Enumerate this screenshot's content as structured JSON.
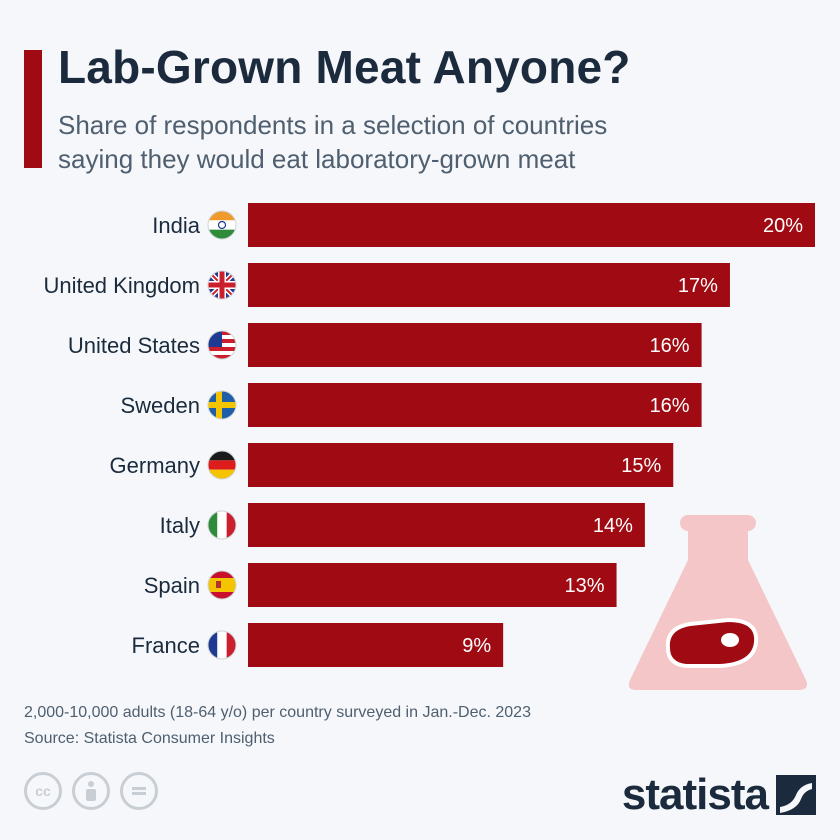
{
  "header": {
    "title": "Lab-Grown Meat Anyone?",
    "subtitle_line1": "Share of respondents in a selection of countries",
    "subtitle_line2": "saying they would eat laboratory-grown meat"
  },
  "chart_data": {
    "type": "bar",
    "orientation": "horizontal",
    "categories": [
      "India",
      "United Kingdom",
      "United States",
      "Sweden",
      "Germany",
      "Italy",
      "Spain",
      "France"
    ],
    "values": [
      20,
      17,
      16,
      16,
      15,
      14,
      13,
      9
    ],
    "value_labels": [
      "20%",
      "17%",
      "16%",
      "16%",
      "15%",
      "14%",
      "13%",
      "9%"
    ],
    "unit": "%",
    "xlim": [
      0,
      20
    ],
    "bar_color": "#a00a12",
    "grid": false,
    "legend": "none"
  },
  "flags": [
    "india-flag-icon",
    "united-kingdom-flag-icon",
    "united-states-flag-icon",
    "sweden-flag-icon",
    "germany-flag-icon",
    "italy-flag-icon",
    "spain-flag-icon",
    "france-flag-icon"
  ],
  "footer": {
    "note": "2,000-10,000 adults (18-64 y/o) per country surveyed in Jan.-Dec. 2023",
    "source": "Source: Statista Consumer Insights",
    "cc_label": "cc",
    "logo": "statista"
  },
  "colors": {
    "accent": "#a00a12",
    "title": "#1b2b3d",
    "text": "#4f5f6f",
    "flask": "#f4c6c8"
  }
}
